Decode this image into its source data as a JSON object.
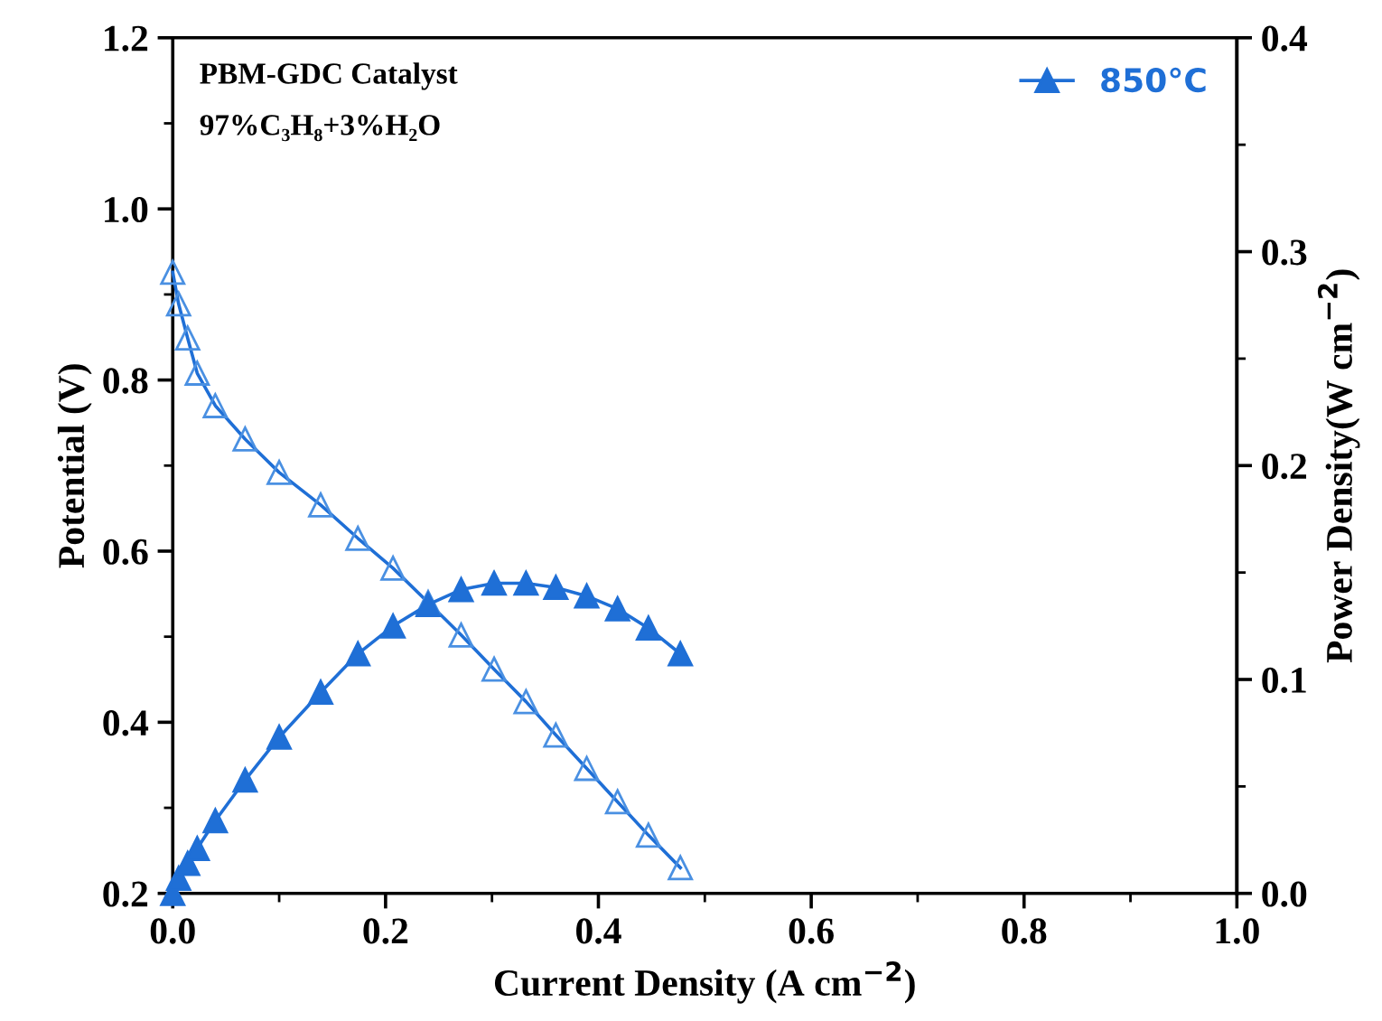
{
  "chart_data": {
    "type": "line",
    "xlabel": "Current Density (A cm$^{−2}$)",
    "ylabel": "Potential (V)",
    "y2label": "Power Density(W cm$^{−2}$)",
    "annotations": [
      "PBM-GDC Catalyst",
      "97%C₃H₈+3%H₂O"
    ],
    "x": [
      0,
      0.0055,
      0.014,
      0.023,
      0.04,
      0.068,
      0.1,
      0.139,
      0.174,
      0.207,
      0.24,
      0.271,
      0.302,
      0.332,
      0.36,
      0.389,
      0.418,
      0.447,
      0.477
    ],
    "series": [
      {
        "color": "#1f6fd6",
        "axis": "y",
        "values": [
          0.926,
          0.889,
          0.849,
          0.808,
          0.77,
          0.731,
          0.692,
          0.654,
          0.615,
          0.58,
          0.54,
          0.502,
          0.462,
          0.424,
          0.385,
          0.346,
          0.307,
          0.268,
          0.23
        ]
      },
      {
        "name": "850°C",
        "color": "#1f6fd6",
        "axis": "y2",
        "values": [
          0,
          0.007,
          0.014,
          0.021,
          0.034,
          0.053,
          0.073,
          0.094,
          0.112,
          0.125,
          0.135,
          0.142,
          0.145,
          0.145,
          0.143,
          0.139,
          0.133,
          0.124,
          0.112
        ]
      }
    ],
    "marker": "triangle",
    "line_style": "solid",
    "legend": "top right",
    "grid": false,
    "xlim": [
      0,
      1.0
    ],
    "xticks": [
      {
        "value": 0,
        "label": "0.0"
      },
      0.2,
      0.4,
      0.6,
      0.8,
      {
        "value": 1.0,
        "label": "1.0"
      }
    ],
    "ylim": [
      0.2,
      1.2
    ],
    "yticks": [
      0.2,
      0.4,
      0.6,
      0.8,
      {
        "value": 1.0,
        "label": "1.0"
      },
      1.2
    ],
    "y2lim": [
      0,
      0.4
    ],
    "y2ticks": [
      {
        "value": 0,
        "label": "0.0"
      },
      0.1,
      0.2,
      0.3,
      0.4
    ]
  }
}
